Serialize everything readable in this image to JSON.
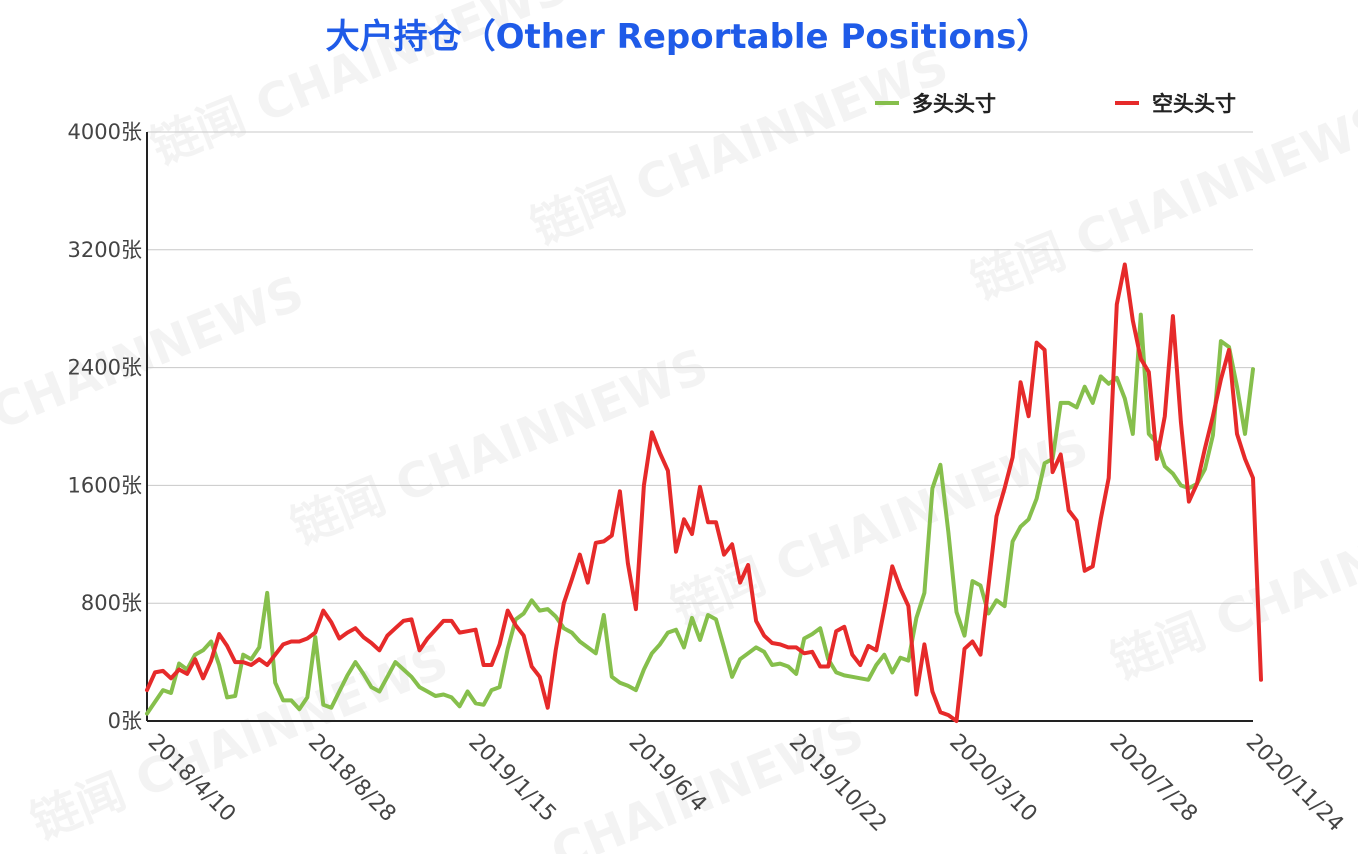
{
  "chart_data": {
    "type": "line",
    "title": "大户持仓（Other Reportable Positions）",
    "y_unit": "张",
    "ylim": [
      0,
      4000
    ],
    "yticks": [
      "0张",
      "800张",
      "1600张",
      "2400张",
      "3200张",
      "4000张"
    ],
    "ytick_values": [
      0,
      800,
      1600,
      2400,
      3200,
      4000
    ],
    "xtick_labels": [
      "2018/4/10",
      "2018/8/28",
      "2019/1/15",
      "2019/6/4",
      "2019/10/22",
      "2020/3/10",
      "2020/7/28",
      "2020/11/24"
    ],
    "xtick_dates": [
      "2018-04-10",
      "2018-08-28",
      "2019-01-15",
      "2019-06-04",
      "2019-10-22",
      "2020-03-10",
      "2020-07-28",
      "2020-11-24"
    ],
    "grid": true,
    "legend_position": "top-right",
    "start_date": "2018-04-10",
    "interval_days": 7,
    "series": [
      {
        "name": "多头头寸",
        "color": "#86bf4c",
        "values": [
          50,
          130,
          210,
          190,
          390,
          350,
          450,
          480,
          540,
          380,
          160,
          170,
          450,
          420,
          500,
          870,
          260,
          140,
          140,
          80,
          160,
          570,
          110,
          90,
          200,
          310,
          400,
          320,
          230,
          200,
          300,
          400,
          350,
          300,
          230,
          200,
          170,
          180,
          160,
          100,
          200,
          120,
          110,
          210,
          230,
          490,
          690,
          730,
          820,
          750,
          760,
          710,
          630,
          600,
          540,
          500,
          460,
          720,
          300,
          260,
          240,
          210,
          350,
          460,
          520,
          600,
          620,
          500,
          700,
          550,
          720,
          690,
          500,
          300,
          420,
          460,
          500,
          470,
          380,
          390,
          370,
          320,
          560,
          590,
          630,
          420,
          330,
          310,
          300,
          290,
          280,
          380,
          450,
          330,
          430,
          410,
          700,
          870,
          1580,
          1740,
          1280,
          740,
          580,
          950,
          920,
          730,
          820,
          780,
          1220,
          1320,
          1370,
          1510,
          1750,
          1780,
          2160,
          2160,
          2130,
          2270,
          2160,
          2340,
          2290,
          2330,
          2190,
          1950,
          2760,
          1950,
          1890,
          1730,
          1680,
          1600,
          1580,
          1610,
          1710,
          1940,
          2580,
          2540,
          2270,
          1950,
          2390
        ]
      },
      {
        "name": "空头头寸",
        "color": "#e62a2a",
        "values": [
          210,
          330,
          340,
          290,
          350,
          320,
          420,
          290,
          410,
          590,
          510,
          400,
          400,
          380,
          420,
          380,
          450,
          520,
          540,
          540,
          560,
          600,
          750,
          670,
          560,
          600,
          630,
          570,
          530,
          480,
          580,
          630,
          680,
          690,
          480,
          560,
          620,
          680,
          680,
          600,
          610,
          620,
          380,
          380,
          520,
          750,
          650,
          580,
          370,
          300,
          90,
          480,
          800,
          960,
          1130,
          940,
          1210,
          1220,
          1260,
          1560,
          1070,
          760,
          1600,
          1960,
          1820,
          1700,
          1150,
          1370,
          1270,
          1590,
          1350,
          1350,
          1130,
          1200,
          940,
          1060,
          680,
          580,
          530,
          520,
          500,
          500,
          460,
          470,
          370,
          370,
          610,
          640,
          450,
          380,
          510,
          480,
          760,
          1050,
          900,
          780,
          180,
          520,
          200,
          60,
          40,
          0,
          490,
          540,
          450,
          920,
          1390,
          1580,
          1790,
          2300,
          2070,
          2570,
          2520,
          1690,
          1810,
          1430,
          1360,
          1020,
          1050,
          1370,
          1650,
          2830,
          3100,
          2720,
          2460,
          2370,
          1780,
          2070,
          2750,
          2030,
          1490,
          1610,
          1850,
          2070,
          2320,
          2520,
          1950,
          1780,
          1650,
          280
        ]
      }
    ]
  }
}
